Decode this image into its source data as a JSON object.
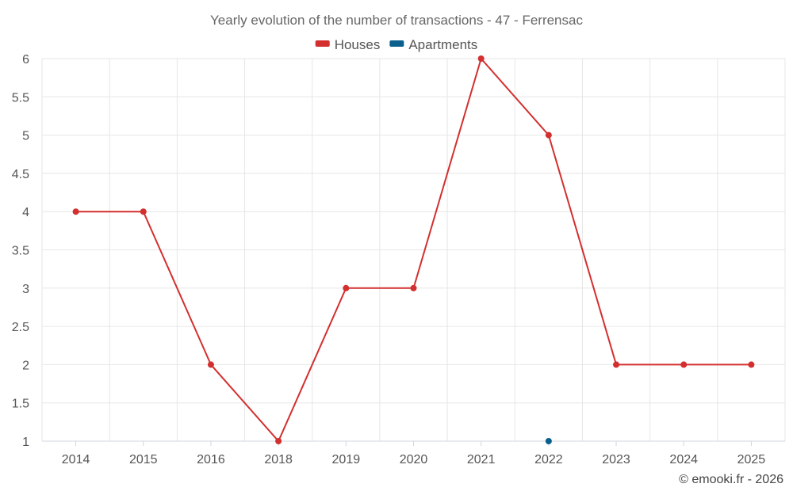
{
  "chart_data": {
    "type": "line",
    "title": "Yearly evolution of the number of transactions - 47 - Ferrensac",
    "categories": [
      "2014",
      "2015",
      "2016",
      "2018",
      "2019",
      "2020",
      "2021",
      "2022",
      "2023",
      "2024",
      "2025"
    ],
    "series": [
      {
        "name": "Houses",
        "color": "#d32f2f",
        "values": [
          4,
          4,
          2,
          1,
          3,
          3,
          6,
          5,
          2,
          2,
          2
        ]
      },
      {
        "name": "Apartments",
        "color": "#0a5f8c",
        "values": [
          null,
          null,
          null,
          null,
          null,
          null,
          null,
          1,
          null,
          null,
          null
        ]
      }
    ],
    "ylim": [
      1,
      6
    ],
    "yticks": [
      1,
      1.5,
      2,
      2.5,
      3,
      3.5,
      4,
      4.5,
      5,
      5.5,
      6
    ],
    "grid": true,
    "legend_position": "top-center",
    "xlabel": "",
    "ylabel": ""
  },
  "credit": "© emooki.fr - 2026"
}
